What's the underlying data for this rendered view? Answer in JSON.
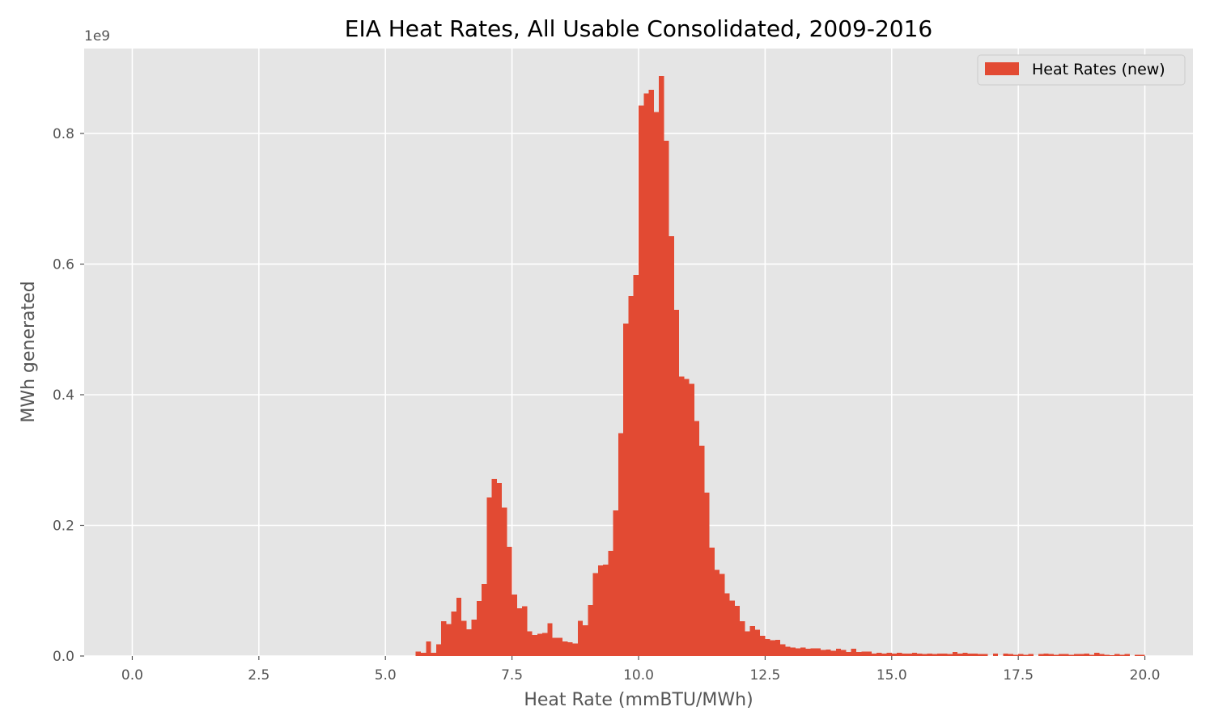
{
  "chart_data": {
    "type": "bar",
    "title": "EIA Heat Rates, All Usable Consolidated, 2009-2016",
    "xlabel": "Heat Rate (mmBTU/MWh)",
    "ylabel": "MWh generated",
    "y_offset_label": "1e9",
    "xlim": [
      -0.95,
      20.95
    ],
    "ylim": [
      0,
      0.93
    ],
    "x_ticks": [
      0.0,
      2.5,
      5.0,
      7.5,
      10.0,
      12.5,
      15.0,
      17.5,
      20.0
    ],
    "x_tick_labels": [
      "0.0",
      "2.5",
      "5.0",
      "7.5",
      "10.0",
      "12.5",
      "15.0",
      "17.5",
      "20.0"
    ],
    "y_ticks": [
      0.0,
      0.2,
      0.4,
      0.6,
      0.8
    ],
    "y_tick_labels": [
      "0.0",
      "0.2",
      "0.4",
      "0.6",
      "0.8"
    ],
    "grid": true,
    "legend_position": "top-right",
    "bar_color": "#E24A33",
    "background_color": "#E5E5E5",
    "series": [
      {
        "name": "Heat Rates (new)",
        "bin_width": 0.1,
        "bins_start": [
          5.6,
          5.7,
          5.8,
          5.9,
          6.0,
          6.1,
          6.2,
          6.3,
          6.4,
          6.5,
          6.6,
          6.7,
          6.8,
          6.9,
          7.0,
          7.1,
          7.2,
          7.3,
          7.4,
          7.5,
          7.6,
          7.7,
          7.8,
          7.9,
          8.0,
          8.1,
          8.2,
          8.3,
          8.4,
          8.5,
          8.6,
          8.7,
          8.8,
          8.9,
          9.0,
          9.1,
          9.2,
          9.3,
          9.4,
          9.5,
          9.6,
          9.7,
          9.8,
          9.9,
          10.0,
          10.1,
          10.2,
          10.3,
          10.4,
          10.5,
          10.6,
          10.7,
          10.8,
          10.9,
          11.0,
          11.1,
          11.2,
          11.3,
          11.4,
          11.5,
          11.6,
          11.7,
          11.8,
          11.9,
          12.0,
          12.1,
          12.2,
          12.3,
          12.4,
          12.5,
          12.6,
          12.7,
          12.8,
          12.9,
          13.0,
          13.1,
          13.2,
          13.3,
          13.4,
          13.5,
          13.6,
          13.7,
          13.8,
          13.9,
          14.0,
          14.1,
          14.2,
          14.3,
          14.4,
          14.5,
          14.6,
          14.7,
          14.8,
          14.9,
          15.0,
          15.1,
          15.2,
          15.3,
          15.4,
          15.5,
          15.6,
          15.7,
          15.8,
          15.9,
          16.0,
          16.1,
          16.2,
          16.3,
          16.4,
          16.5,
          16.6,
          16.7,
          16.8,
          16.9,
          17.0,
          17.1,
          17.2,
          17.3,
          17.4,
          17.5,
          17.6,
          17.7,
          17.8,
          17.9,
          18.0,
          18.1,
          18.2,
          18.3,
          18.4,
          18.5,
          18.6,
          18.7,
          18.8,
          18.9,
          19.0,
          19.1,
          19.2,
          19.3,
          19.4,
          19.5,
          19.6,
          19.7,
          19.8,
          19.9
        ],
        "values": [
          0.007,
          0.005,
          0.022,
          0.005,
          0.018,
          0.053,
          0.049,
          0.068,
          0.089,
          0.054,
          0.041,
          0.056,
          0.084,
          0.11,
          0.243,
          0.271,
          0.265,
          0.227,
          0.167,
          0.094,
          0.073,
          0.076,
          0.038,
          0.032,
          0.034,
          0.035,
          0.05,
          0.028,
          0.028,
          0.022,
          0.021,
          0.019,
          0.054,
          0.047,
          0.078,
          0.127,
          0.139,
          0.14,
          0.161,
          0.223,
          0.341,
          0.509,
          0.551,
          0.583,
          0.843,
          0.861,
          0.867,
          0.833,
          0.888,
          0.789,
          0.643,
          0.53,
          0.428,
          0.424,
          0.417,
          0.36,
          0.322,
          0.25,
          0.166,
          0.132,
          0.126,
          0.096,
          0.085,
          0.077,
          0.053,
          0.038,
          0.046,
          0.04,
          0.031,
          0.026,
          0.024,
          0.025,
          0.018,
          0.014,
          0.013,
          0.012,
          0.013,
          0.011,
          0.012,
          0.012,
          0.009,
          0.01,
          0.008,
          0.011,
          0.009,
          0.006,
          0.011,
          0.006,
          0.007,
          0.007,
          0.004,
          0.005,
          0.004,
          0.005,
          0.004,
          0.005,
          0.004,
          0.004,
          0.005,
          0.004,
          0.003,
          0.004,
          0.003,
          0.004,
          0.004,
          0.003,
          0.006,
          0.004,
          0.005,
          0.004,
          0.004,
          0.003,
          0.003,
          0.0,
          0.004,
          0.0,
          0.004,
          0.003,
          0.002,
          0.003,
          0.002,
          0.003,
          0.0,
          0.003,
          0.004,
          0.003,
          0.002,
          0.003,
          0.003,
          0.002,
          0.003,
          0.003,
          0.004,
          0.002,
          0.005,
          0.003,
          0.002,
          0.001,
          0.003,
          0.002,
          0.003,
          0.0,
          0.002,
          0.002
        ]
      }
    ]
  }
}
